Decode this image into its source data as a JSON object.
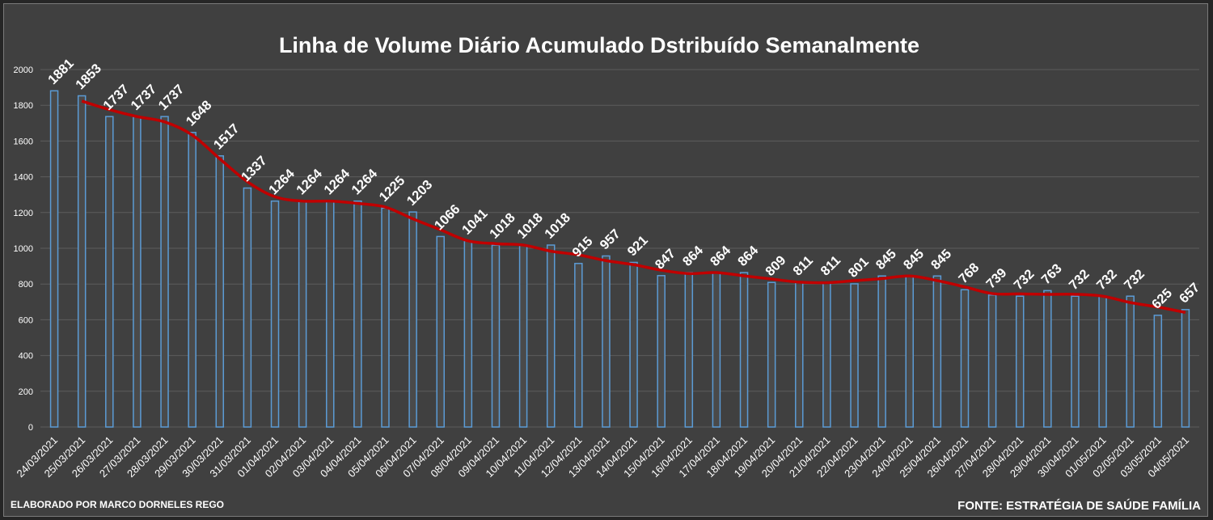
{
  "chart_data": {
    "type": "bar",
    "title": "Linha  de Volume Diário Acumulado Dstribuído Semanalmente",
    "categories": [
      "24/03/2021",
      "25/03/2021",
      "26/03/2021",
      "27/03/2021",
      "28/03/2021",
      "29/03/2021",
      "30/03/2021",
      "31/03/2021",
      "01/04/2021",
      "02/04/2021",
      "03/04/2021",
      "04/04/2021",
      "05/04/2021",
      "06/04/2021",
      "07/04/2021",
      "08/04/2021",
      "09/04/2021",
      "10/04/2021",
      "11/04/2021",
      "12/04/2021",
      "13/04/2021",
      "14/04/2021",
      "15/04/2021",
      "16/04/2021",
      "17/04/2021",
      "18/04/2021",
      "19/04/2021",
      "20/04/2021",
      "21/04/2021",
      "22/04/2021",
      "23/04/2021",
      "24/04/2021",
      "25/04/2021",
      "26/04/2021",
      "27/04/2021",
      "28/04/2021",
      "29/04/2021",
      "30/04/2021",
      "01/05/2021",
      "02/05/2021",
      "03/05/2021",
      "04/05/2021"
    ],
    "values": [
      1881,
      1853,
      1737,
      1737,
      1737,
      1648,
      1517,
      1337,
      1264,
      1264,
      1264,
      1264,
      1225,
      1203,
      1066,
      1041,
      1018,
      1018,
      1018,
      915,
      957,
      921,
      847,
      864,
      864,
      864,
      809,
      811,
      811,
      801,
      845,
      845,
      845,
      768,
      739,
      732,
      763,
      732,
      732,
      732,
      625,
      657
    ],
    "yticks": [
      "0",
      "200",
      "400",
      "600",
      "800",
      "1000",
      "1200",
      "1400",
      "1600",
      "1800",
      "2000"
    ],
    "ylim": [
      0,
      2000
    ],
    "grid": true,
    "xlabel": "",
    "ylabel": "",
    "trend_line": "smoothed moving average",
    "colors": {
      "background": "#404040",
      "bar_outline": "#5b9bd5",
      "trend_line": "#c00000",
      "text": "#ffffff",
      "gridline": "#5c5c5c"
    }
  },
  "footer": {
    "left": "ELABORADO POR MARCO DORNELES REGO",
    "right": "FONTE: ESTRATÉGIA DE SAÚDE FAMÍLIA"
  }
}
